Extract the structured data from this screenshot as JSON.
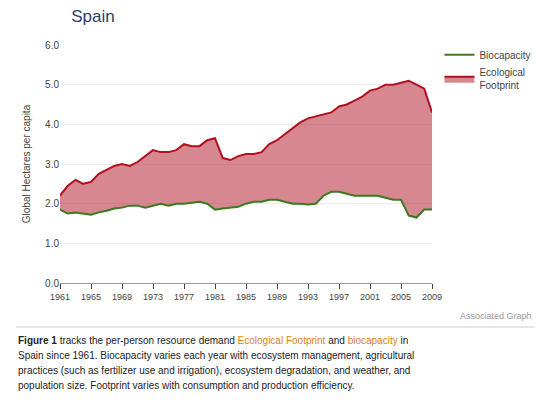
{
  "chart_data": {
    "type": "line",
    "title": {
      "text": "Spain",
      "color": "#2c3e6b"
    },
    "y_label": "Global Hectares per capita",
    "x": [
      1961,
      1962,
      1963,
      1964,
      1965,
      1966,
      1967,
      1968,
      1969,
      1970,
      1971,
      1972,
      1973,
      1974,
      1975,
      1976,
      1977,
      1978,
      1979,
      1980,
      1981,
      1982,
      1983,
      1984,
      1985,
      1986,
      1987,
      1988,
      1989,
      1990,
      1991,
      1992,
      1993,
      1994,
      1995,
      1996,
      1997,
      1998,
      1999,
      2000,
      2001,
      2002,
      2003,
      2004,
      2005,
      2006,
      2007,
      2008,
      2009
    ],
    "series": [
      {
        "name": "Ecological\nFootprint",
        "color": "#b01020",
        "type": "area",
        "values": [
          2.2,
          2.45,
          2.6,
          2.5,
          2.55,
          2.75,
          2.85,
          2.95,
          3.0,
          2.95,
          3.05,
          3.2,
          3.35,
          3.3,
          3.3,
          3.35,
          3.5,
          3.45,
          3.45,
          3.6,
          3.65,
          3.15,
          3.1,
          3.2,
          3.25,
          3.25,
          3.3,
          3.5,
          3.6,
          3.75,
          3.9,
          4.05,
          4.15,
          4.2,
          4.25,
          4.3,
          4.45,
          4.5,
          4.6,
          4.7,
          4.85,
          4.9,
          5.0,
          5.0,
          5.05,
          5.1,
          5.0,
          4.9,
          4.3
        ]
      },
      {
        "name": "Biocapacity",
        "color": "#3a7a20",
        "type": "line",
        "values": [
          1.85,
          1.75,
          1.78,
          1.75,
          1.72,
          1.78,
          1.82,
          1.88,
          1.9,
          1.95,
          1.95,
          1.9,
          1.95,
          2.0,
          1.95,
          2.0,
          2.0,
          2.02,
          2.05,
          2.0,
          1.85,
          1.88,
          1.9,
          1.92,
          2.0,
          2.05,
          2.05,
          2.1,
          2.1,
          2.05,
          2.0,
          2.0,
          1.98,
          2.0,
          2.2,
          2.3,
          2.3,
          2.25,
          2.2,
          2.2,
          2.2,
          2.2,
          2.15,
          2.1,
          2.1,
          1.7,
          1.65,
          1.85,
          1.85
        ]
      }
    ],
    "xlim": [
      1961,
      2009
    ],
    "xticks": [
      1961,
      1965,
      1969,
      1973,
      1977,
      1981,
      1985,
      1989,
      1993,
      1997,
      2001,
      2005,
      2009
    ],
    "ylim": [
      0.0,
      6.0
    ],
    "yticks": [
      {
        "value": 0.0,
        "label": "0.0"
      },
      {
        "value": 1.0,
        "label": "1.0"
      },
      {
        "value": 2.0,
        "label": "2.0"
      },
      {
        "value": 3.0,
        "label": "3.0"
      },
      {
        "value": 4.0,
        "label": "4.0"
      },
      {
        "value": 5.0,
        "label": "5.0"
      },
      {
        "value": 6.0,
        "label": "6.0"
      }
    ],
    "grid": true,
    "annotations": [
      {
        "text": "Associated Graph",
        "color": "#999999"
      },
      {
        "lines": [
          [
            {
              "text": "Figure 1",
              "color": "#222222"
            },
            {
              "text": " tracks the per-person resource demand ",
              "color": "#222222"
            },
            {
              "text": "Ecological Footprint",
              "color": "#e08020"
            },
            {
              "text": " and ",
              "color": "#222222"
            },
            {
              "text": "biocapacity",
              "color": "#e08020"
            },
            {
              "text": " in",
              "color": "#222222"
            }
          ],
          [
            {
              "text": "Spain since 1961. Biocapacity varies each year with ecosystem management, agricultural",
              "color": "#222222"
            }
          ],
          [
            {
              "text": "practices (such as fertilizer use and irrigation), ecosystem degradation, and weather, and",
              "color": "#222222"
            }
          ],
          [
            {
              "text": "population size. Footprint varies with consumption and production efficiency.",
              "color": "#222222"
            }
          ]
        ]
      }
    ]
  }
}
